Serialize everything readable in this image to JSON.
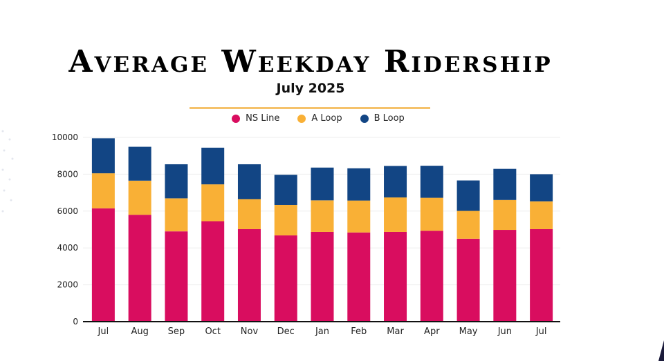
{
  "header": {
    "title": "Average Weekday Ridership",
    "subtitle": "July 2025"
  },
  "colors": {
    "ns": "#d90d5f",
    "a": "#f9b036",
    "b": "#124584",
    "rule": "#f5c26b"
  },
  "chart_data": {
    "type": "bar",
    "stacked": true,
    "categories": [
      "Jul",
      "Aug",
      "Sep",
      "Oct",
      "Nov",
      "Dec",
      "Jan",
      "Feb",
      "Mar",
      "Apr",
      "May",
      "Jun",
      "Jul"
    ],
    "series": [
      {
        "name": "NS Line",
        "values": [
          6150,
          5800,
          4900,
          5450,
          5020,
          4680,
          4870,
          4840,
          4870,
          4930,
          4500,
          4980,
          5020
        ]
      },
      {
        "name": "A Loop",
        "values": [
          1900,
          1850,
          1790,
          2000,
          1630,
          1650,
          1710,
          1730,
          1870,
          1790,
          1510,
          1620,
          1510
        ]
      },
      {
        "name": "B Loop",
        "values": [
          1900,
          1840,
          1850,
          1990,
          1890,
          1640,
          1780,
          1750,
          1710,
          1740,
          1650,
          1690,
          1470
        ]
      }
    ],
    "yticks": [
      0,
      2000,
      4000,
      6000,
      8000,
      10000
    ],
    "ylim": [
      0,
      10000
    ],
    "grid": true,
    "legend": "top-center"
  }
}
